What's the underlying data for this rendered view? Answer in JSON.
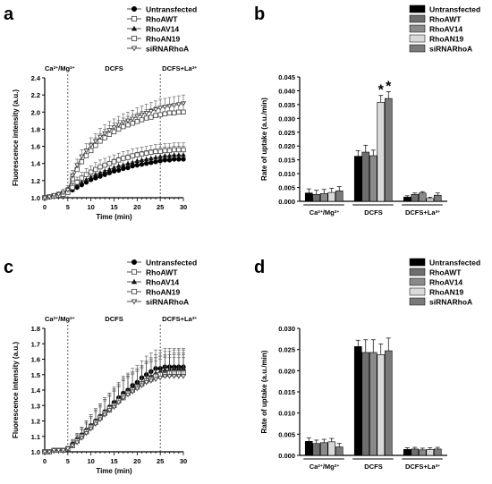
{
  "chart_data": [
    {
      "panel_label": "a",
      "type": "line",
      "xlabel": "Time (min)",
      "ylabel": "Fluorescence intensity (a.u.)",
      "xlim": [
        0,
        30
      ],
      "ylim": [
        1.0,
        2.4
      ],
      "xticks": [
        "0",
        "5",
        "10",
        "15",
        "20",
        "25",
        "30"
      ],
      "yticks": [
        "1.0",
        "1.2",
        "1.4",
        "1.6",
        "1.8",
        "2.0",
        "2.2",
        "2.4"
      ],
      "phases": [
        {
          "label": "Ca2+/Mg2+",
          "base": "Ca",
          "sup1": "2+",
          "mid": "/Mg",
          "sup2": "2+"
        },
        {
          "label": "DCFS",
          "base": "DCFS"
        },
        {
          "label": "DCFS+La3+",
          "base": "DCFS+La",
          "sup1": "3+"
        }
      ],
      "phase_boundaries": [
        5,
        25
      ],
      "legend_placement": "top-right",
      "x": [
        0,
        1,
        2,
        3,
        4,
        5,
        6,
        7,
        8,
        9,
        10,
        11,
        12,
        13,
        14,
        15,
        16,
        17,
        18,
        19,
        20,
        21,
        22,
        23,
        24,
        25,
        26,
        27,
        28,
        29,
        30
      ],
      "series": [
        {
          "name": "Untransfected",
          "marker": "circle-filled",
          "values": [
            1.0,
            1.01,
            1.02,
            1.03,
            1.04,
            1.06,
            1.09,
            1.12,
            1.15,
            1.18,
            1.21,
            1.23,
            1.25,
            1.27,
            1.29,
            1.31,
            1.32,
            1.34,
            1.35,
            1.37,
            1.38,
            1.39,
            1.4,
            1.41,
            1.42,
            1.43,
            1.44,
            1.44,
            1.45,
            1.45,
            1.45
          ],
          "errors": [
            0.01,
            0.01,
            0.02,
            0.02,
            0.02,
            0.03,
            0.03,
            0.04,
            0.04,
            0.04,
            0.05,
            0.05,
            0.05,
            0.05,
            0.05,
            0.05,
            0.05,
            0.05,
            0.05,
            0.05,
            0.05,
            0.05,
            0.05,
            0.05,
            0.05,
            0.05,
            0.05,
            0.05,
            0.05,
            0.05,
            0.05
          ]
        },
        {
          "name": "RhoAWT",
          "marker": "square-open",
          "values": [
            1.0,
            1.01,
            1.02,
            1.03,
            1.05,
            1.08,
            1.22,
            1.33,
            1.42,
            1.49,
            1.55,
            1.61,
            1.66,
            1.7,
            1.74,
            1.77,
            1.8,
            1.83,
            1.85,
            1.87,
            1.89,
            1.91,
            1.93,
            1.94,
            1.96,
            1.97,
            1.98,
            1.99,
            1.99,
            2.0,
            2.0
          ],
          "errors": [
            0.01,
            0.01,
            0.02,
            0.03,
            0.03,
            0.04,
            0.06,
            0.07,
            0.08,
            0.08,
            0.09,
            0.09,
            0.09,
            0.1,
            0.1,
            0.1,
            0.1,
            0.1,
            0.1,
            0.1,
            0.1,
            0.1,
            0.1,
            0.1,
            0.1,
            0.1,
            0.1,
            0.1,
            0.1,
            0.1,
            0.1
          ]
        },
        {
          "name": "RhoAV14",
          "marker": "triangle-filled",
          "values": [
            1.0,
            1.01,
            1.02,
            1.04,
            1.05,
            1.08,
            1.11,
            1.15,
            1.18,
            1.21,
            1.24,
            1.27,
            1.29,
            1.31,
            1.33,
            1.35,
            1.37,
            1.38,
            1.4,
            1.41,
            1.43,
            1.44,
            1.45,
            1.46,
            1.47,
            1.48,
            1.49,
            1.49,
            1.5,
            1.5,
            1.5
          ],
          "errors": [
            0.01,
            0.01,
            0.02,
            0.03,
            0.03,
            0.04,
            0.05,
            0.06,
            0.07,
            0.07,
            0.08,
            0.08,
            0.09,
            0.09,
            0.09,
            0.1,
            0.1,
            0.1,
            0.1,
            0.1,
            0.1,
            0.1,
            0.1,
            0.1,
            0.1,
            0.1,
            0.1,
            0.1,
            0.1,
            0.1,
            0.1
          ]
        },
        {
          "name": "RhoAN19",
          "marker": "square-open",
          "values": [
            1.0,
            1.01,
            1.02,
            1.03,
            1.04,
            1.06,
            1.12,
            1.18,
            1.23,
            1.27,
            1.3,
            1.33,
            1.36,
            1.38,
            1.4,
            1.42,
            1.44,
            1.46,
            1.47,
            1.49,
            1.5,
            1.51,
            1.52,
            1.53,
            1.54,
            1.54,
            1.55,
            1.55,
            1.56,
            1.56,
            1.56
          ],
          "errors": [
            0.01,
            0.01,
            0.02,
            0.03,
            0.03,
            0.04,
            0.05,
            0.06,
            0.07,
            0.07,
            0.07,
            0.08,
            0.08,
            0.08,
            0.08,
            0.08,
            0.08,
            0.08,
            0.08,
            0.08,
            0.08,
            0.08,
            0.08,
            0.08,
            0.08,
            0.08,
            0.08,
            0.08,
            0.08,
            0.08,
            0.08
          ]
        },
        {
          "name": "siRNARhoA",
          "marker": "triangle-down-open",
          "values": [
            1.0,
            1.01,
            1.03,
            1.04,
            1.06,
            1.09,
            1.26,
            1.38,
            1.48,
            1.55,
            1.61,
            1.66,
            1.71,
            1.75,
            1.79,
            1.82,
            1.85,
            1.88,
            1.9,
            1.92,
            1.95,
            1.97,
            1.99,
            2.01,
            2.03,
            2.05,
            2.06,
            2.07,
            2.08,
            2.09,
            2.1
          ],
          "errors": [
            0.01,
            0.02,
            0.02,
            0.03,
            0.04,
            0.05,
            0.06,
            0.07,
            0.08,
            0.08,
            0.09,
            0.09,
            0.1,
            0.1,
            0.1,
            0.1,
            0.1,
            0.1,
            0.1,
            0.1,
            0.1,
            0.1,
            0.1,
            0.1,
            0.1,
            0.1,
            0.1,
            0.1,
            0.1,
            0.1,
            0.1
          ]
        }
      ]
    },
    {
      "panel_label": "b",
      "type": "bar",
      "ylabel": "Rate of uptake (a.u./min)",
      "ylim": [
        0,
        0.045
      ],
      "yticks": [
        "0.000",
        "0.005",
        "0.010",
        "0.015",
        "0.020",
        "0.025",
        "0.030",
        "0.035",
        "0.040",
        "0.045"
      ],
      "categories": [
        {
          "label": "Ca2+/Mg2+",
          "base": "Ca",
          "sup1": "2+",
          "mid": "/Mg",
          "sup2": "2+"
        },
        {
          "label": "DCFS",
          "base": "DCFS"
        },
        {
          "label": "DCFS+La3+",
          "base": "DCFS+La",
          "sup1": "3+"
        }
      ],
      "legend_placement": "top-right",
      "series": [
        {
          "name": "Untransfected",
          "color": "#000000",
          "values": [
            0.003,
            0.0163,
            0.0015
          ],
          "errors": [
            0.0015,
            0.002,
            0.0005
          ]
        },
        {
          "name": "RhoAWT",
          "color": "#6e6e6e",
          "values": [
            0.0025,
            0.0178,
            0.0025
          ],
          "errors": [
            0.0015,
            0.0025,
            0.0005
          ]
        },
        {
          "name": "RhoAV14",
          "color": "#8a8a8a",
          "values": [
            0.0028,
            0.0165,
            0.003
          ],
          "errors": [
            0.0015,
            0.002,
            0.0005
          ]
        },
        {
          "name": "RhoAN19",
          "color": "#d9d9d9",
          "values": [
            0.0032,
            0.0358,
            0.001
          ],
          "errors": [
            0.0015,
            0.0025,
            0.0005
          ]
        },
        {
          "name": "siRNARhoA",
          "color": "#7a7a7a",
          "values": [
            0.0038,
            0.0372,
            0.0022
          ],
          "errors": [
            0.0015,
            0.0025,
            0.0008
          ]
        }
      ],
      "annotations": [
        {
          "category": 1,
          "series": 3,
          "text": "*"
        },
        {
          "category": 1,
          "series": 4,
          "text": "*"
        }
      ]
    },
    {
      "panel_label": "c",
      "type": "line",
      "xlabel": "Time (min)",
      "ylabel": "Fluorescence intensity (a.u.)",
      "xlim": [
        0,
        30
      ],
      "ylim": [
        1.0,
        1.8
      ],
      "xticks": [
        "0",
        "5",
        "10",
        "15",
        "20",
        "25",
        "30"
      ],
      "yticks": [
        "1.0",
        "1.1",
        "1.2",
        "1.3",
        "1.4",
        "1.5",
        "1.6",
        "1.7",
        "1.8"
      ],
      "phases": [
        {
          "label": "Ca2+/Mg2+",
          "base": "Ca",
          "sup1": "2+",
          "mid": "/Mg",
          "sup2": "2+"
        },
        {
          "label": "DCFS",
          "base": "DCFS"
        },
        {
          "label": "DCFS+La3+",
          "base": "DCFS+La",
          "sup1": "3+"
        }
      ],
      "phase_boundaries": [
        5,
        25
      ],
      "legend_placement": "top-right",
      "x": [
        0,
        1,
        2,
        3,
        4,
        5,
        6,
        7,
        8,
        9,
        10,
        11,
        12,
        13,
        14,
        15,
        16,
        17,
        18,
        19,
        20,
        21,
        22,
        23,
        24,
        25,
        26,
        27,
        28,
        29,
        30
      ],
      "series": [
        {
          "name": "Untransfected",
          "marker": "circle-filled",
          "values": [
            1.0,
            1.0,
            1.01,
            1.01,
            1.01,
            1.02,
            1.05,
            1.08,
            1.11,
            1.14,
            1.17,
            1.2,
            1.23,
            1.26,
            1.29,
            1.32,
            1.35,
            1.38,
            1.4,
            1.43,
            1.45,
            1.48,
            1.5,
            1.52,
            1.54,
            1.54,
            1.55,
            1.55,
            1.55,
            1.55,
            1.55
          ],
          "errors": [
            0.005,
            0.005,
            0.01,
            0.01,
            0.01,
            0.015,
            0.03,
            0.04,
            0.05,
            0.06,
            0.07,
            0.08,
            0.08,
            0.09,
            0.09,
            0.1,
            0.1,
            0.11,
            0.11,
            0.11,
            0.11,
            0.11,
            0.12,
            0.12,
            0.12,
            0.12,
            0.12,
            0.12,
            0.12,
            0.12,
            0.12
          ]
        },
        {
          "name": "RhoAWT",
          "marker": "square-open",
          "values": [
            1.0,
            1.0,
            1.01,
            1.01,
            1.01,
            1.02,
            1.04,
            1.07,
            1.1,
            1.13,
            1.16,
            1.19,
            1.22,
            1.25,
            1.27,
            1.3,
            1.33,
            1.35,
            1.38,
            1.4,
            1.42,
            1.44,
            1.46,
            1.48,
            1.49,
            1.5,
            1.51,
            1.51,
            1.52,
            1.52,
            1.52
          ],
          "errors": [
            0.005,
            0.005,
            0.01,
            0.01,
            0.01,
            0.015,
            0.03,
            0.04,
            0.05,
            0.06,
            0.07,
            0.08,
            0.08,
            0.09,
            0.09,
            0.1,
            0.1,
            0.11,
            0.11,
            0.11,
            0.11,
            0.11,
            0.12,
            0.12,
            0.12,
            0.12,
            0.12,
            0.12,
            0.12,
            0.12,
            0.12
          ]
        },
        {
          "name": "RhoAV14",
          "marker": "triangle-filled",
          "values": [
            1.0,
            1.0,
            1.01,
            1.01,
            1.01,
            1.02,
            1.05,
            1.08,
            1.11,
            1.14,
            1.17,
            1.2,
            1.23,
            1.26,
            1.29,
            1.31,
            1.34,
            1.37,
            1.39,
            1.41,
            1.43,
            1.45,
            1.47,
            1.49,
            1.51,
            1.52,
            1.53,
            1.53,
            1.54,
            1.54,
            1.54
          ],
          "errors": [
            0.005,
            0.005,
            0.01,
            0.01,
            0.01,
            0.015,
            0.03,
            0.04,
            0.05,
            0.06,
            0.07,
            0.08,
            0.08,
            0.09,
            0.09,
            0.1,
            0.1,
            0.11,
            0.11,
            0.11,
            0.11,
            0.11,
            0.12,
            0.12,
            0.12,
            0.12,
            0.12,
            0.12,
            0.12,
            0.12,
            0.12
          ]
        },
        {
          "name": "RhoAN19",
          "marker": "square-open",
          "values": [
            1.0,
            1.0,
            1.01,
            1.01,
            1.01,
            1.02,
            1.04,
            1.07,
            1.1,
            1.13,
            1.16,
            1.19,
            1.22,
            1.25,
            1.28,
            1.3,
            1.33,
            1.36,
            1.38,
            1.4,
            1.42,
            1.44,
            1.46,
            1.47,
            1.49,
            1.5,
            1.5,
            1.51,
            1.51,
            1.51,
            1.51
          ],
          "errors": [
            0.005,
            0.005,
            0.01,
            0.01,
            0.01,
            0.015,
            0.03,
            0.04,
            0.05,
            0.06,
            0.07,
            0.08,
            0.08,
            0.09,
            0.09,
            0.1,
            0.1,
            0.11,
            0.11,
            0.11,
            0.11,
            0.11,
            0.12,
            0.12,
            0.12,
            0.12,
            0.12,
            0.12,
            0.12,
            0.12,
            0.12
          ]
        },
        {
          "name": "siRNARhoA",
          "marker": "triangle-down-open",
          "values": [
            1.0,
            1.0,
            1.01,
            1.01,
            1.01,
            1.02,
            1.04,
            1.06,
            1.09,
            1.12,
            1.15,
            1.18,
            1.21,
            1.24,
            1.27,
            1.29,
            1.32,
            1.35,
            1.37,
            1.39,
            1.41,
            1.43,
            1.45,
            1.46,
            1.47,
            1.48,
            1.49,
            1.49,
            1.49,
            1.49,
            1.49
          ],
          "errors": [
            0.005,
            0.005,
            0.01,
            0.01,
            0.01,
            0.015,
            0.03,
            0.04,
            0.05,
            0.06,
            0.07,
            0.08,
            0.08,
            0.09,
            0.09,
            0.1,
            0.1,
            0.11,
            0.11,
            0.11,
            0.11,
            0.11,
            0.12,
            0.12,
            0.12,
            0.12,
            0.12,
            0.12,
            0.12,
            0.12,
            0.12
          ]
        }
      ]
    },
    {
      "panel_label": "d",
      "type": "bar",
      "ylabel": "Rate of uptake (a.u./min)",
      "ylim": [
        0,
        0.03
      ],
      "yticks": [
        "0.000",
        "0.005",
        "0.010",
        "0.015",
        "0.020",
        "0.025",
        "0.030"
      ],
      "categories": [
        {
          "label": "Ca2+/Mg2+",
          "base": "Ca",
          "sup1": "2+",
          "mid": "/Mg",
          "sup2": "2+"
        },
        {
          "label": "DCFS",
          "base": "DCFS"
        },
        {
          "label": "DCFS+La3+",
          "base": "DCFS+La",
          "sup1": "3+"
        }
      ],
      "legend_placement": "top-right",
      "series": [
        {
          "name": "Untransfected",
          "color": "#000000",
          "values": [
            0.0033,
            0.0257,
            0.0014
          ],
          "errors": [
            0.0008,
            0.0015,
            0.0004
          ]
        },
        {
          "name": "RhoAWT",
          "color": "#6e6e6e",
          "values": [
            0.0028,
            0.0243,
            0.0015
          ],
          "errors": [
            0.0008,
            0.003,
            0.0004
          ]
        },
        {
          "name": "RhoAV14",
          "color": "#8a8a8a",
          "values": [
            0.003,
            0.0243,
            0.0013
          ],
          "errors": [
            0.0008,
            0.003,
            0.0004
          ]
        },
        {
          "name": "RhoAN19",
          "color": "#d9d9d9",
          "values": [
            0.0032,
            0.0238,
            0.0014
          ],
          "errors": [
            0.0008,
            0.0025,
            0.0004
          ]
        },
        {
          "name": "siRNARhoA",
          "color": "#7a7a7a",
          "values": [
            0.002,
            0.0247,
            0.0015
          ],
          "errors": [
            0.0008,
            0.003,
            0.0004
          ]
        }
      ]
    }
  ]
}
